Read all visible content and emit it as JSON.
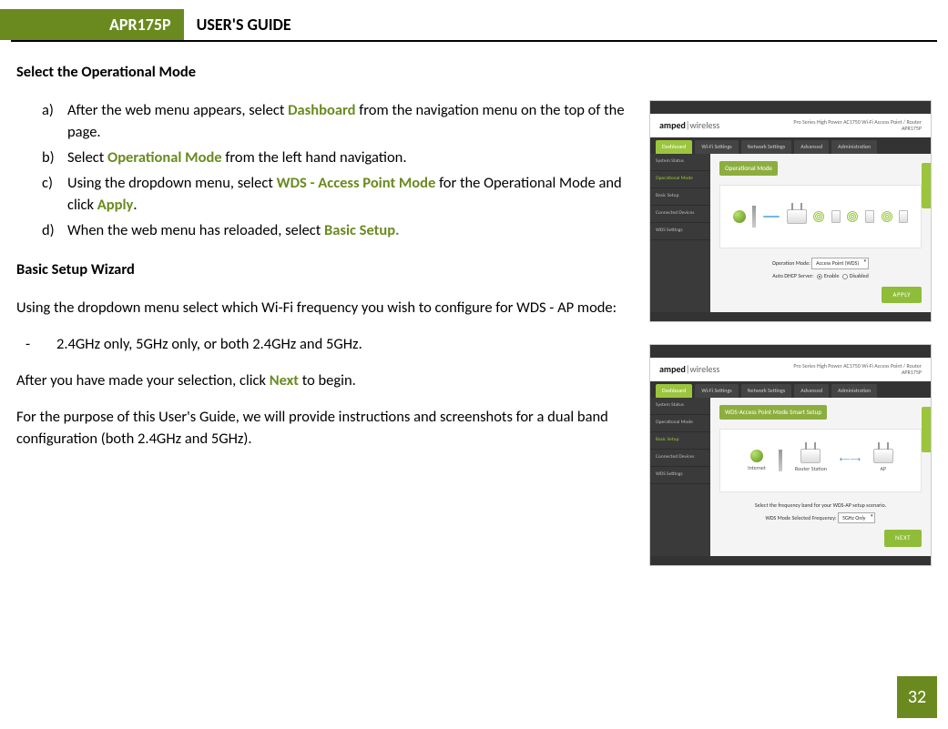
{
  "colors": {
    "accent": "#6a8a1f",
    "accent_light": "#9bc53d",
    "shot_button": "#8fbd3a",
    "sidebar_bg": "#3a3a3a",
    "topbar_bg": "#333333",
    "diagram_border": "#e4e4e4",
    "cable_blue": "#6fb8e8",
    "arrow_blue": "#3b82c4"
  },
  "header": {
    "model": "APR175P",
    "title": "USER'S GUIDE"
  },
  "section1": {
    "title": "Select the Operational Mode",
    "items": [
      {
        "marker": "a)",
        "pre": "After the web menu appears, select ",
        "hl": "Dashboard",
        "post": " from the navigation menu on the top of the page."
      },
      {
        "marker": "b)",
        "pre": "Select ",
        "hl": "Operational Mode",
        "post": " from the left hand navigation."
      },
      {
        "marker": "c)",
        "pre": "Using the dropdown menu, select ",
        "hl": "WDS - Access Point Mode",
        "mid": " for the Operational Mode and click ",
        "hl2": "Apply",
        "post": "."
      },
      {
        "marker": "d)",
        "pre": "When the web menu has reloaded, select ",
        "hl": "Basic Setup.",
        "post": ""
      }
    ]
  },
  "section2": {
    "title": "Basic Setup Wizard",
    "p1": "Using the dropdown menu select which Wi-Fi frequency you wish to configure for WDS - AP mode:",
    "bullet": "2.4GHz only, 5GHz only, or both 2.4GHz and 5GHz.",
    "p2_pre": "After you have made your selection, click ",
    "p2_hl": "Next",
    "p2_post": " to begin.",
    "p3": "For the purpose of this User's Guide, we will provide instructions and screenshots for a dual band configuration (both 2.4GHz and 5GHz)."
  },
  "screenshot_common": {
    "brand_bold": "amped",
    "brand_sep": "|",
    "brand_thin": "wireless",
    "product_line1": "Pro Series High Power AC1750 Wi-Fi Access Point / Router",
    "product_line2": "APR175P",
    "navtabs": [
      "Dashboard",
      "Wi-Fi Settings",
      "Network Settings",
      "Advanced",
      "Administration"
    ]
  },
  "shot1": {
    "sidebar": [
      "System Status",
      "Operational Mode",
      "Basic Setup",
      "Connected Devices",
      "WDS Settings"
    ],
    "sidebar_active_index": 1,
    "panel_title": "Operational Mode",
    "form": {
      "label1": "Operation Mode:",
      "select1": "Access Point (WDS)",
      "label2": "Auto DHCP Server:",
      "radio_enable": "Enable",
      "radio_disable": "Disabled"
    },
    "button": "APPLY"
  },
  "shot2": {
    "sidebar": [
      "System Status",
      "Operational Mode",
      "Basic Setup",
      "Connected Devices",
      "WDS Settings"
    ],
    "sidebar_active_index": 2,
    "panel_title": "WDS-Access Point Mode Smart Setup",
    "diagram_labels": {
      "internet": "Internet",
      "router": "Router Station",
      "ap": "AP"
    },
    "form": {
      "caption": "Select the frequency band for your WDS-AP setup scenario.",
      "label": "WDS Mode Selected Frequency:",
      "select": "5GHz Only"
    },
    "button": "NEXT"
  },
  "page_number": "32"
}
